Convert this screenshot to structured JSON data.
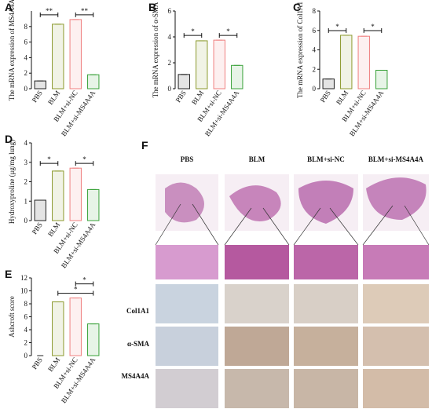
{
  "chart_data": [
    {
      "type": "bar",
      "label": "A",
      "ylabel": "The mRNA expression of MS4A4A",
      "categories": [
        "PBS",
        "BLM",
        "BLM+si-NC",
        "BLM+si-MS4A4A"
      ],
      "values": [
        1.0,
        8.3,
        8.9,
        1.8
      ],
      "colors": [
        "#222222",
        "#8c9a2e",
        "#f08080",
        "#3aa23a"
      ],
      "ylim": [
        0,
        10
      ],
      "yticks": [
        0,
        2,
        4,
        6,
        8
      ],
      "annotations": [
        {
          "text": "**",
          "categories": [
            "PBS",
            "BLM"
          ]
        },
        {
          "text": "**",
          "categories": [
            "BLM+si-NC",
            "BLM+si-MS4A4A"
          ]
        }
      ]
    },
    {
      "type": "bar",
      "label": "B",
      "ylabel": "The mRNA expression of α-SMA",
      "categories": [
        "PBS",
        "BLM",
        "BLM+si-NC",
        "BLM+si-MS4A4A"
      ],
      "values": [
        1.1,
        3.7,
        3.75,
        1.8
      ],
      "colors": [
        "#222222",
        "#8c9a2e",
        "#f08080",
        "#3aa23a"
      ],
      "ylim": [
        0,
        6
      ],
      "yticks": [
        0,
        2,
        4,
        6
      ],
      "annotations": [
        {
          "text": "*",
          "categories": [
            "PBS",
            "BLM"
          ]
        },
        {
          "text": "*",
          "categories": [
            "BLM+si-NC",
            "BLM+si-MS4A4A"
          ]
        }
      ]
    },
    {
      "type": "bar",
      "label": "C",
      "ylabel": "The mRNA expression of Col1A1",
      "categories": [
        "PBS",
        "BLM",
        "BLM+si-NC",
        "BLM+si-MS4A4A"
      ],
      "values": [
        1.0,
        5.5,
        5.4,
        1.9
      ],
      "colors": [
        "#222222",
        "#8c9a2e",
        "#f08080",
        "#3aa23a"
      ],
      "ylim": [
        0,
        8
      ],
      "yticks": [
        0,
        2,
        4,
        6,
        8
      ],
      "annotations": [
        {
          "text": "*",
          "categories": [
            "PBS",
            "BLM"
          ]
        },
        {
          "text": "*",
          "categories": [
            "BLM+si-NC",
            "BLM+si-MS4A4A"
          ]
        }
      ]
    },
    {
      "type": "bar",
      "label": "D",
      "ylabel": "Hydroxyproline (μg/mg lung)",
      "categories": [
        "PBS",
        "BLM",
        "BLM+si-NC",
        "BLM+si-MS4A4A"
      ],
      "values": [
        1.05,
        2.55,
        2.7,
        1.6
      ],
      "colors": [
        "#222222",
        "#8c9a2e",
        "#f08080",
        "#3aa23a"
      ],
      "ylim": [
        0,
        4
      ],
      "yticks": [
        0,
        1,
        2,
        3,
        4
      ],
      "annotations": [
        {
          "text": "*",
          "categories": [
            "PBS",
            "BLM"
          ]
        },
        {
          "text": "*",
          "categories": [
            "BLM+si-NC",
            "BLM+si-MS4A4A"
          ]
        }
      ]
    },
    {
      "type": "bar",
      "label": "E",
      "ylabel": "Ashcroft score",
      "categories": [
        "PBS",
        "BLM",
        "BLM+si-NC",
        "BLM+si-MS4A4A"
      ],
      "values": [
        0,
        8.3,
        8.9,
        4.9
      ],
      "colors": [
        "#222222",
        "#8c9a2e",
        "#f08080",
        "#3aa23a"
      ],
      "ylim": [
        0,
        12
      ],
      "yticks": [
        0,
        2,
        4,
        6,
        8,
        10,
        12
      ],
      "annotations": [
        {
          "text": "*",
          "categories": [
            "BLM",
            "BLM+si-MS4A4A"
          ]
        },
        {
          "text": "*",
          "categories": [
            "BLM+si-NC",
            "BLM+si-MS4A4A"
          ]
        }
      ]
    }
  ],
  "panel_f": {
    "label": "F",
    "columns": [
      "PBS",
      "BLM",
      "BLM+si-NC",
      "BLM+si-MS4A4A"
    ],
    "rows": [
      "Col1A1",
      "α-SMA",
      "MS4A4A"
    ]
  }
}
